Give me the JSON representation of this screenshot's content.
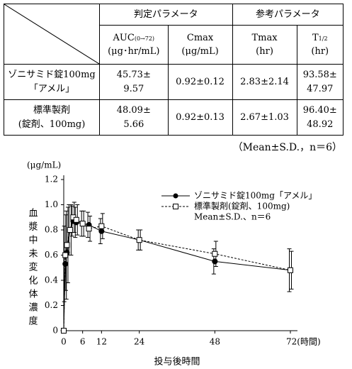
{
  "table": {
    "group_headers": [
      "判定パラメータ",
      "参考パラメータ"
    ],
    "columns": [
      {
        "name": "AUC",
        "sub": "(0→72)",
        "unit": "(μg･hr/mL)"
      },
      {
        "name": "Cmax",
        "sub": "",
        "unit": "(μg/mL)"
      },
      {
        "name": "Tmax",
        "sub": "",
        "unit": "(hr)"
      },
      {
        "name": "T",
        "sub": "1/2",
        "unit": "(hr)"
      }
    ],
    "rows": [
      [
        "ゾニサミド錠100mg\n「アメル」",
        "45.73±\n9.57",
        "0.92±0.12",
        "2.83±2.14",
        "93.58±\n47.97"
      ],
      [
        "標準製剤\n(錠剤、100mg)",
        "48.09±\n5.66",
        "0.92±0.13",
        "2.67±1.03",
        "96.40±\n48.92"
      ]
    ],
    "note": "（Mean±S.D.，n＝6）"
  },
  "chart_data": {
    "type": "line",
    "y_label": "血漿中未変化体濃度",
    "y_unit": "(μg/mL)",
    "x_label": "投与後時間",
    "x": [
      0,
      0.5,
      1,
      2,
      3,
      4,
      6,
      8,
      12,
      24,
      48,
      72
    ],
    "series": [
      {
        "name": "ゾニサミド錠100mg「アメル」",
        "color": "#000000",
        "line_style": "solid",
        "marker": "circle",
        "values": [
          0,
          0.53,
          0.62,
          0.8,
          0.87,
          0.86,
          0.85,
          0.84,
          0.79,
          0.72,
          0.55,
          0.48
        ],
        "errors": [
          0,
          0.3,
          0.3,
          0.2,
          0.12,
          0.12,
          0.1,
          0.1,
          0.1,
          0.08,
          0.1,
          0.17
        ]
      },
      {
        "name": "標準製剤(錠剤、100mg)",
        "color": "#000000",
        "line_style": "dashed",
        "marker": "square",
        "values": [
          0,
          0.6,
          0.68,
          0.8,
          0.9,
          0.88,
          0.85,
          0.81,
          0.83,
          0.72,
          0.61,
          0.48
        ],
        "errors": [
          0,
          0.35,
          0.3,
          0.2,
          0.12,
          0.12,
          0.1,
          0.1,
          0.1,
          0.08,
          0.1,
          0.15
        ]
      }
    ],
    "legend_note": "Mean±S.D.、n＝6",
    "xlim": [
      0,
      72
    ],
    "xticks": [
      0,
      6,
      12,
      24,
      48,
      {
        "value": 72,
        "label": "72(時間)"
      }
    ],
    "ylim": [
      0,
      1.2
    ],
    "yticks": [
      0,
      0.2,
      0.4,
      0.6,
      0.8,
      {
        "value": 1,
        "label": "1.0"
      },
      1.2
    ]
  }
}
